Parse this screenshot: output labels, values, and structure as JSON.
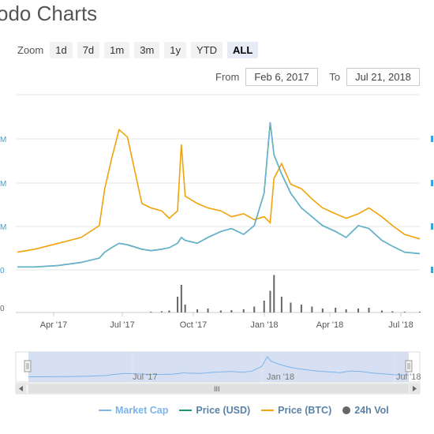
{
  "title": "odo Charts",
  "zoom": {
    "label": "Zoom",
    "buttons": [
      "1d",
      "7d",
      "1m",
      "3m",
      "1y",
      "YTD",
      "ALL"
    ],
    "active": "ALL"
  },
  "range": {
    "from_label": "From",
    "from_value": "Feb 6, 2017",
    "to_label": "To",
    "to_value": "Jul 21, 2018"
  },
  "legend": [
    {
      "label": "Market Cap",
      "color": "#7cb5ec",
      "icon": "line"
    },
    {
      "label": "Price (USD)",
      "color": "#1a9a7a",
      "icon": "line"
    },
    {
      "label": "Price (BTC)",
      "color": "#f0a30a",
      "icon": "line"
    },
    {
      "label": "24h Vol",
      "color": "#666666",
      "icon": "dot"
    }
  ],
  "navigator": {
    "ticks": [
      "Jul '17",
      "Jan '18",
      "Jul '18"
    ],
    "scrollbar_grip": "III"
  },
  "chart_data": {
    "type": "line",
    "x_ticks": [
      "Apr '17",
      "Jul '17",
      "Oct '17",
      "Jan '18",
      "Apr '18",
      "Jul '18"
    ],
    "left_axis_labels": [
      "M",
      "M",
      "M",
      "0"
    ],
    "volume_axis_labels": [
      "0"
    ],
    "x": [
      "2017-02-06",
      "2017-03-01",
      "2017-04-01",
      "2017-05-01",
      "2017-05-25",
      "2017-06-01",
      "2017-06-10",
      "2017-06-20",
      "2017-07-01",
      "2017-07-20",
      "2017-08-01",
      "2017-08-15",
      "2017-08-25",
      "2017-09-05",
      "2017-09-10",
      "2017-09-15",
      "2017-10-01",
      "2017-10-15",
      "2017-11-01",
      "2017-11-15",
      "2017-12-01",
      "2017-12-15",
      "2017-12-28",
      "2018-01-05",
      "2018-01-10",
      "2018-01-20",
      "2018-02-01",
      "2018-02-15",
      "2018-03-01",
      "2018-03-15",
      "2018-04-01",
      "2018-04-15",
      "2018-05-01",
      "2018-05-15",
      "2018-06-01",
      "2018-06-15",
      "2018-07-01",
      "2018-07-21"
    ],
    "series": [
      {
        "name": "Price (BTC)",
        "values": [
          0.12,
          0.14,
          0.18,
          0.22,
          0.3,
          0.55,
          0.75,
          0.95,
          0.9,
          0.45,
          0.42,
          0.4,
          0.35,
          0.4,
          0.85,
          0.5,
          0.45,
          0.42,
          0.4,
          0.36,
          0.38,
          0.34,
          0.36,
          0.32,
          0.62,
          0.72,
          0.58,
          0.55,
          0.48,
          0.42,
          0.38,
          0.35,
          0.38,
          0.42,
          0.36,
          0.3,
          0.24,
          0.21
        ]
      },
      {
        "name": "Price (USD)",
        "values": [
          0.02,
          0.02,
          0.03,
          0.05,
          0.08,
          0.12,
          0.15,
          0.18,
          0.17,
          0.14,
          0.13,
          0.14,
          0.15,
          0.18,
          0.22,
          0.2,
          0.18,
          0.22,
          0.26,
          0.28,
          0.24,
          0.3,
          0.52,
          1.0,
          0.78,
          0.65,
          0.52,
          0.42,
          0.36,
          0.3,
          0.26,
          0.22,
          0.3,
          0.28,
          0.2,
          0.16,
          0.12,
          0.11
        ]
      },
      {
        "name": "Market Cap",
        "values": [
          0.02,
          0.02,
          0.03,
          0.05,
          0.08,
          0.12,
          0.15,
          0.18,
          0.17,
          0.14,
          0.13,
          0.14,
          0.15,
          0.18,
          0.22,
          0.2,
          0.18,
          0.22,
          0.26,
          0.28,
          0.24,
          0.3,
          0.52,
          1.0,
          0.78,
          0.65,
          0.52,
          0.42,
          0.36,
          0.3,
          0.26,
          0.22,
          0.3,
          0.28,
          0.2,
          0.16,
          0.12,
          0.11
        ]
      },
      {
        "name": "24h Vol",
        "values": [
          0,
          0,
          0,
          0,
          0,
          0,
          0,
          0,
          0,
          0,
          0.02,
          0.03,
          0.05,
          0.4,
          0.7,
          0.2,
          0.08,
          0.1,
          0.05,
          0.06,
          0.08,
          0.15,
          0.3,
          0.55,
          0.95,
          0.4,
          0.25,
          0.2,
          0.15,
          0.1,
          0.12,
          0.08,
          0.1,
          0.12,
          0.05,
          0.03,
          0.02,
          0.02
        ]
      }
    ]
  }
}
